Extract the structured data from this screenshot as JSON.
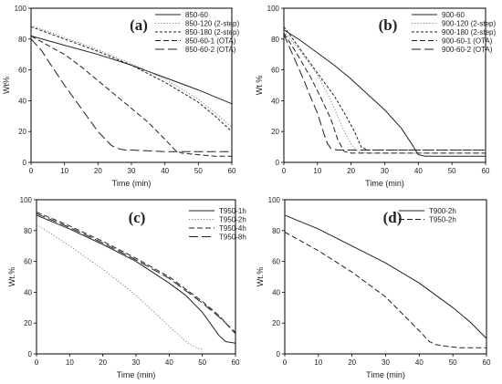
{
  "chart_data": [
    {
      "type": "line",
      "panel_label": "(a)",
      "xlabel": "Time (min)",
      "ylabel": "Wt%",
      "xlim": [
        0,
        60
      ],
      "ylim": [
        0,
        100
      ],
      "xticks": [
        0,
        10,
        20,
        30,
        40,
        50,
        60
      ],
      "yticks": [
        0,
        20,
        40,
        60,
        80,
        100
      ],
      "legend_position": "top-right",
      "series": [
        {
          "name": "850-60",
          "dash": "solid",
          "x": [
            0,
            10,
            20,
            30,
            40,
            50,
            60
          ],
          "y": [
            82,
            76,
            70,
            63,
            55,
            47,
            38
          ]
        },
        {
          "name": "850-120 (2-step)",
          "dash": "dot",
          "x": [
            0,
            10,
            20,
            30,
            40,
            50,
            55,
            60
          ],
          "y": [
            89,
            81,
            73,
            64,
            54,
            41,
            32,
            23
          ]
        },
        {
          "name": "850-180 (2-step)",
          "dash": "shortdash",
          "x": [
            0,
            10,
            20,
            30,
            40,
            50,
            55,
            60
          ],
          "y": [
            88,
            80,
            72,
            63,
            52,
            39,
            30,
            20
          ]
        },
        {
          "name": "850-60-1 (OTA)",
          "dash": "mediumdash",
          "x": [
            0,
            5,
            10,
            15,
            20,
            25,
            30,
            35,
            40,
            43,
            45,
            50,
            55,
            60
          ],
          "y": [
            82,
            76,
            70,
            62,
            53,
            44,
            35,
            26,
            15,
            8,
            6,
            5,
            4,
            4
          ]
        },
        {
          "name": "850-60-2 (OTA)",
          "dash": "longdash",
          "x": [
            0,
            3,
            6,
            10,
            15,
            20,
            24,
            26,
            28,
            30,
            40,
            50,
            60
          ],
          "y": [
            80,
            73,
            63,
            50,
            35,
            20,
            11,
            9,
            8,
            8,
            7,
            7,
            7
          ]
        }
      ]
    },
    {
      "type": "line",
      "panel_label": "(b)",
      "xlabel": "Time (min)",
      "ylabel": "Wt %",
      "xlim": [
        0,
        60
      ],
      "ylim": [
        0,
        100
      ],
      "xticks": [
        0,
        10,
        20,
        30,
        40,
        50,
        60
      ],
      "yticks": [
        0,
        20,
        40,
        60,
        80,
        100
      ],
      "legend_position": "top-right",
      "series": [
        {
          "name": "900-60",
          "dash": "solid",
          "x": [
            0,
            5,
            10,
            15,
            20,
            25,
            30,
            35,
            38,
            40,
            42,
            50,
            60
          ],
          "y": [
            86,
            79,
            71,
            63,
            54,
            44,
            34,
            22,
            12,
            5,
            4,
            4,
            4
          ]
        },
        {
          "name": "900-120 (2-step)",
          "dash": "dot",
          "x": [
            0,
            5,
            10,
            14,
            18,
            20,
            22,
            25,
            30,
            40,
            50,
            60
          ],
          "y": [
            85,
            72,
            57,
            40,
            20,
            12,
            7,
            6,
            6,
            6,
            6,
            6
          ]
        },
        {
          "name": "900-180 (2-step)",
          "dash": "shortdash",
          "x": [
            0,
            5,
            10,
            15,
            18,
            21,
            23,
            25,
            30,
            40,
            50,
            60
          ],
          "y": [
            88,
            73,
            58,
            43,
            32,
            20,
            10,
            8,
            8,
            8,
            8,
            8
          ]
        },
        {
          "name": "900-60-1 (OTA)",
          "dash": "mediumdash",
          "x": [
            0,
            4,
            8,
            11,
            14,
            16,
            18,
            20,
            30,
            40,
            50,
            60
          ],
          "y": [
            84,
            70,
            55,
            42,
            28,
            15,
            7,
            6,
            6,
            6,
            6,
            6
          ]
        },
        {
          "name": "900-60-2 (OTA)",
          "dash": "longdash",
          "x": [
            0,
            3,
            6,
            8,
            10,
            11,
            12,
            13,
            14,
            16,
            20,
            30,
            40,
            50,
            60
          ],
          "y": [
            83,
            68,
            53,
            42,
            32,
            25,
            18,
            12,
            9,
            8,
            8,
            8,
            8,
            8,
            8
          ]
        }
      ]
    },
    {
      "type": "line",
      "panel_label": "(c)",
      "xlabel": "Time (min)",
      "ylabel": "Wt.%",
      "xlim": [
        0,
        60
      ],
      "ylim": [
        0,
        100
      ],
      "xticks": [
        0,
        10,
        20,
        30,
        40,
        50,
        60
      ],
      "yticks": [
        0,
        20,
        40,
        60,
        80,
        100
      ],
      "legend_position": "top-right",
      "series": [
        {
          "name": "T950-1h",
          "dash": "solid",
          "x": [
            0,
            10,
            20,
            30,
            40,
            45,
            50,
            53,
            55,
            57,
            60
          ],
          "y": [
            90,
            81,
            71,
            60,
            46,
            38,
            27,
            18,
            12,
            8,
            7
          ]
        },
        {
          "name": "T950-2h",
          "dash": "dot",
          "x": [
            0,
            5,
            10,
            20,
            30,
            35,
            40,
            45,
            48,
            50
          ],
          "y": [
            84,
            77,
            70,
            55,
            38,
            28,
            18,
            8,
            4,
            3
          ]
        },
        {
          "name": "T950-4h",
          "dash": "mediumdash",
          "x": [
            0,
            10,
            20,
            30,
            40,
            50,
            55,
            60
          ],
          "y": [
            92,
            83,
            73,
            62,
            50,
            34,
            25,
            13
          ]
        },
        {
          "name": "T950-8h",
          "dash": "longdash",
          "x": [
            0,
            10,
            20,
            30,
            40,
            50,
            55,
            60
          ],
          "y": [
            91,
            82,
            72,
            61,
            49,
            33,
            24,
            14
          ]
        }
      ]
    },
    {
      "type": "line",
      "panel_label": "(d)",
      "xlabel": "Time (min)",
      "ylabel": "Wt.%",
      "xlim": [
        0,
        60
      ],
      "ylim": [
        0,
        100
      ],
      "xticks": [
        0,
        10,
        20,
        30,
        40,
        50,
        60
      ],
      "yticks": [
        0,
        20,
        40,
        60,
        80,
        100
      ],
      "legend_position": "top-right",
      "series": [
        {
          "name": "T900-2h",
          "dash": "solid",
          "x": [
            0,
            10,
            20,
            30,
            40,
            50,
            55,
            60
          ],
          "y": [
            90,
            81,
            70,
            59,
            46,
            30,
            21,
            10
          ]
        },
        {
          "name": "T950-2h",
          "dash": "mediumdash",
          "x": [
            0,
            10,
            20,
            30,
            35,
            40,
            43,
            45,
            48,
            52,
            60
          ],
          "y": [
            79,
            67,
            53,
            37,
            26,
            15,
            8,
            6,
            5,
            4,
            4
          ]
        }
      ]
    }
  ]
}
